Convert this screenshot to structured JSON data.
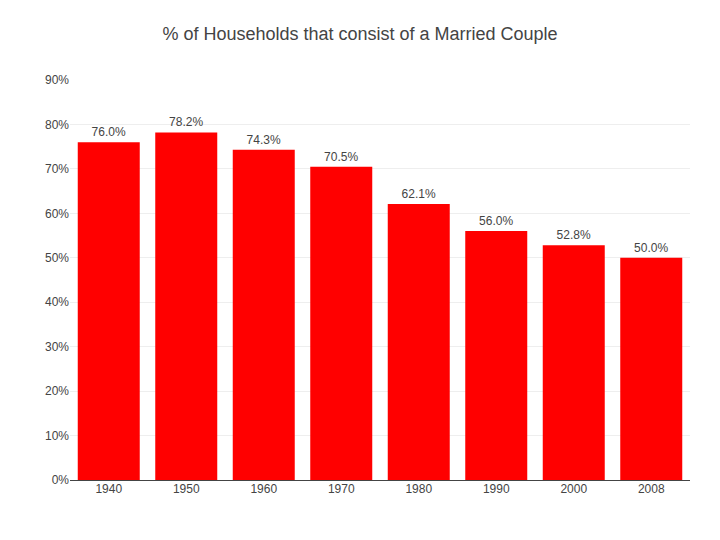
{
  "chart_data": {
    "type": "bar",
    "title": "% of Households that consist of a Married Couple",
    "categories": [
      "1940",
      "1950",
      "1960",
      "1970",
      "1980",
      "1990",
      "2000",
      "2008"
    ],
    "values": [
      76.0,
      78.2,
      74.3,
      70.5,
      62.1,
      56.0,
      52.8,
      50.0
    ],
    "value_labels": [
      "76.0%",
      "78.2%",
      "74.3%",
      "70.5%",
      "62.1%",
      "56.0%",
      "52.8%",
      "50.0%"
    ],
    "data_labels": true,
    "color": "#FF0000",
    "ylim": [
      0,
      90
    ],
    "yticks": [
      {
        "value": 0,
        "label": "0%"
      },
      {
        "value": 10,
        "label": "10%"
      },
      {
        "value": 20,
        "label": "20%"
      },
      {
        "value": 30,
        "label": "30%"
      },
      {
        "value": 40,
        "label": "40%"
      },
      {
        "value": 50,
        "label": "50%"
      },
      {
        "value": 60,
        "label": "60%"
      },
      {
        "value": 70,
        "label": "70%"
      },
      {
        "value": 80,
        "label": "80%"
      },
      {
        "value": 90,
        "label": "90%"
      }
    ],
    "grid": true
  }
}
